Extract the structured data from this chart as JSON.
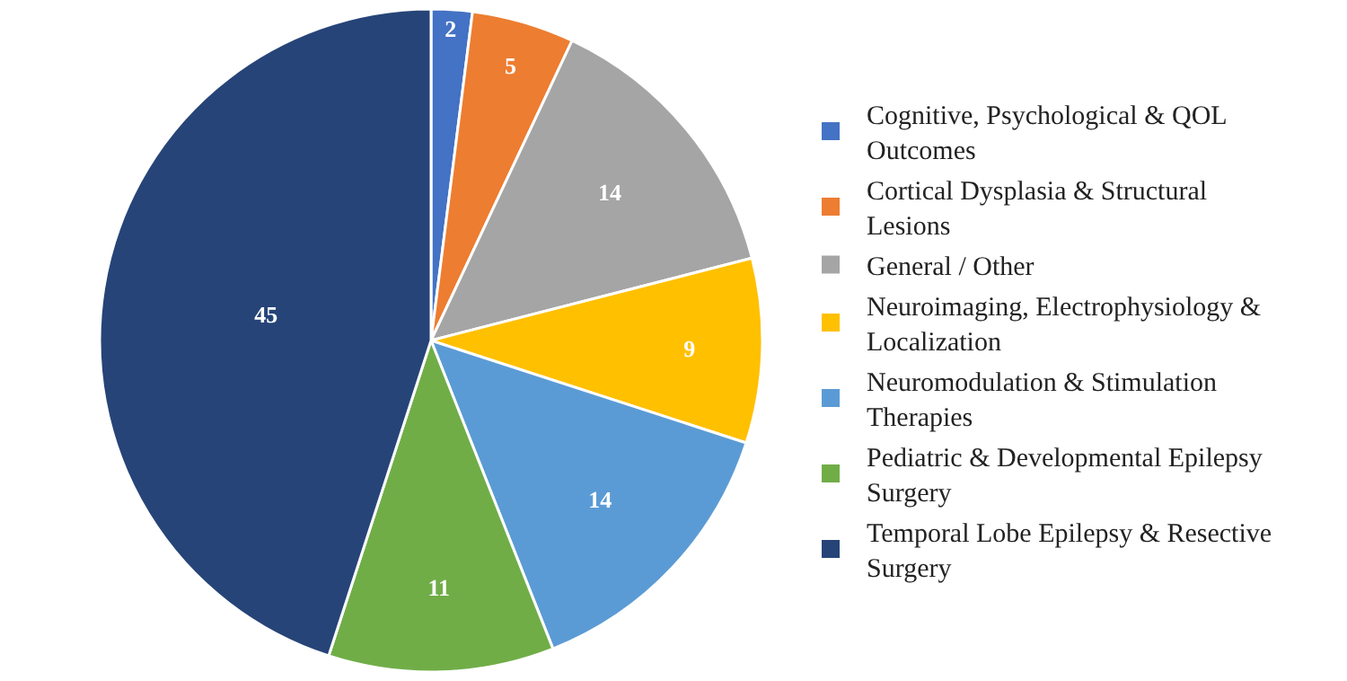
{
  "chart_data": {
    "type": "pie",
    "categories": [
      "Cognitive, Psychological & QOL Outcomes",
      "Cortical Dysplasia & Structural Lesions",
      "General / Other",
      "Neuroimaging, Electrophysiology & Localization",
      "Neuromodulation & Stimulation Therapies",
      "Pediatric & Developmental Epilepsy Surgery",
      "Temporal Lobe Epilepsy & Resective Surgery"
    ],
    "values": [
      2,
      5,
      14,
      9,
      14,
      11,
      45
    ],
    "colors": [
      "#4472c4",
      "#ed7d31",
      "#a5a5a5",
      "#ffc000",
      "#5b9bd5",
      "#70ad47",
      "#264478"
    ],
    "data_labels": true,
    "legend": "right"
  }
}
